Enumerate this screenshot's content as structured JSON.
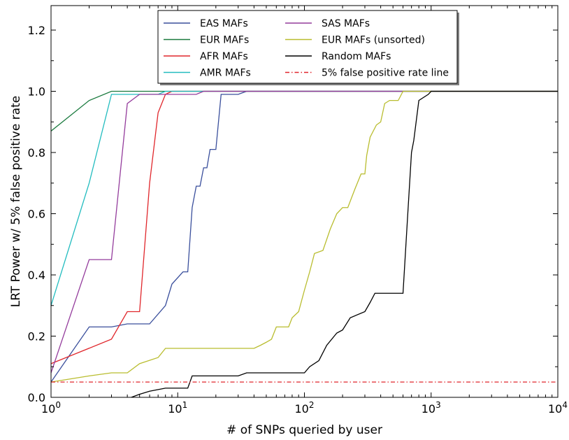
{
  "chart_data": {
    "type": "line",
    "title": "",
    "xlabel": "# of SNPs queried by user",
    "ylabel": "LRT Power w/ 5% false positive rate",
    "xscale": "log",
    "xlim": [
      1,
      10000
    ],
    "ylim": [
      0,
      1.28
    ],
    "grid": false,
    "legend_position": "top",
    "x_ticks": [
      {
        "value": 1,
        "base": "10",
        "exp": "0"
      },
      {
        "value": 10,
        "base": "10",
        "exp": "1"
      },
      {
        "value": 100,
        "base": "10",
        "exp": "2"
      },
      {
        "value": 1000,
        "base": "10",
        "exp": "3"
      },
      {
        "value": 10000,
        "base": "10",
        "exp": "4"
      }
    ],
    "y_ticks": [
      {
        "value": 0,
        "label": "0.0"
      },
      {
        "value": 0.2,
        "label": "0.2"
      },
      {
        "value": 0.4,
        "label": "0.4"
      },
      {
        "value": 0.6,
        "label": "0.6"
      },
      {
        "value": 0.8,
        "label": "0.8"
      },
      {
        "value": 1.0,
        "label": "1.0"
      },
      {
        "value": 1.2,
        "label": "1.2"
      }
    ],
    "series": [
      {
        "name": "EAS MAFs",
        "color": "#3a4f9c",
        "dash": "",
        "points": [
          [
            1,
            0.05
          ],
          [
            2,
            0.23
          ],
          [
            3,
            0.23
          ],
          [
            4,
            0.24
          ],
          [
            6,
            0.24
          ],
          [
            8,
            0.3
          ],
          [
            9,
            0.37
          ],
          [
            11,
            0.41
          ],
          [
            12,
            0.41
          ],
          [
            13,
            0.62
          ],
          [
            14,
            0.69
          ],
          [
            15,
            0.69
          ],
          [
            16,
            0.75
          ],
          [
            17,
            0.75
          ],
          [
            18,
            0.81
          ],
          [
            20,
            0.81
          ],
          [
            22,
            0.99
          ],
          [
            30,
            0.99
          ],
          [
            35,
            1.0
          ],
          [
            10000,
            1.0
          ]
        ]
      },
      {
        "name": "EUR MAFs",
        "color": "#1a7a3e",
        "dash": "",
        "points": [
          [
            1,
            0.87
          ],
          [
            2,
            0.97
          ],
          [
            3,
            1.0
          ],
          [
            10000,
            1.0
          ]
        ]
      },
      {
        "name": "AFR MAFs",
        "color": "#e0262b",
        "dash": "",
        "points": [
          [
            1,
            0.11
          ],
          [
            3,
            0.19
          ],
          [
            4,
            0.28
          ],
          [
            5,
            0.28
          ],
          [
            6,
            0.7
          ],
          [
            7,
            0.93
          ],
          [
            8,
            0.99
          ],
          [
            9,
            1.0
          ],
          [
            10000,
            1.0
          ]
        ]
      },
      {
        "name": "AMR MAFs",
        "color": "#22bcbf",
        "dash": "",
        "points": [
          [
            1,
            0.3
          ],
          [
            2,
            0.7
          ],
          [
            3,
            0.99
          ],
          [
            7,
            0.99
          ],
          [
            8,
            1.0
          ],
          [
            10000,
            1.0
          ]
        ]
      },
      {
        "name": "SAS MAFs",
        "color": "#943c9c",
        "dash": "",
        "points": [
          [
            1,
            0.08
          ],
          [
            2,
            0.45
          ],
          [
            3,
            0.45
          ],
          [
            4,
            0.96
          ],
          [
            5,
            0.99
          ],
          [
            14,
            0.99
          ],
          [
            16,
            1.0
          ],
          [
            10000,
            1.0
          ]
        ]
      },
      {
        "name": "EUR MAFs (unsorted)",
        "color": "#b9bd2f",
        "dash": "",
        "points": [
          [
            1,
            0.05
          ],
          [
            2,
            0.07
          ],
          [
            3,
            0.08
          ],
          [
            4,
            0.08
          ],
          [
            5,
            0.11
          ],
          [
            7,
            0.13
          ],
          [
            8,
            0.16
          ],
          [
            40,
            0.16
          ],
          [
            45,
            0.17
          ],
          [
            50,
            0.18
          ],
          [
            55,
            0.19
          ],
          [
            60,
            0.23
          ],
          [
            75,
            0.23
          ],
          [
            80,
            0.26
          ],
          [
            90,
            0.28
          ],
          [
            100,
            0.35
          ],
          [
            110,
            0.41
          ],
          [
            120,
            0.47
          ],
          [
            140,
            0.48
          ],
          [
            160,
            0.55
          ],
          [
            180,
            0.6
          ],
          [
            200,
            0.62
          ],
          [
            220,
            0.62
          ],
          [
            250,
            0.68
          ],
          [
            280,
            0.73
          ],
          [
            300,
            0.73
          ],
          [
            310,
            0.79
          ],
          [
            330,
            0.85
          ],
          [
            370,
            0.89
          ],
          [
            400,
            0.9
          ],
          [
            430,
            0.96
          ],
          [
            470,
            0.97
          ],
          [
            500,
            0.97
          ],
          [
            550,
            0.97
          ],
          [
            600,
            1.0
          ],
          [
            10000,
            1.0
          ]
        ]
      },
      {
        "name": "Random MAFs",
        "color": "#000000",
        "dash": "",
        "points": [
          [
            4.3,
            0.0
          ],
          [
            5,
            0.01
          ],
          [
            6,
            0.02
          ],
          [
            8,
            0.03
          ],
          [
            12,
            0.03
          ],
          [
            13,
            0.07
          ],
          [
            30,
            0.07
          ],
          [
            35,
            0.08
          ],
          [
            100,
            0.08
          ],
          [
            110,
            0.1
          ],
          [
            130,
            0.12
          ],
          [
            150,
            0.17
          ],
          [
            180,
            0.21
          ],
          [
            200,
            0.22
          ],
          [
            230,
            0.26
          ],
          [
            300,
            0.28
          ],
          [
            330,
            0.31
          ],
          [
            360,
            0.34
          ],
          [
            600,
            0.34
          ],
          [
            650,
            0.58
          ],
          [
            700,
            0.8
          ],
          [
            730,
            0.84
          ],
          [
            800,
            0.97
          ],
          [
            950,
            0.99
          ],
          [
            1000,
            1.0
          ],
          [
            10000,
            1.0
          ]
        ]
      },
      {
        "name": "5% false positive rate line",
        "color": "#e0262b",
        "dash": "6,3,1.5,3",
        "points": [
          [
            1,
            0.05
          ],
          [
            10000,
            0.05
          ]
        ]
      }
    ]
  }
}
